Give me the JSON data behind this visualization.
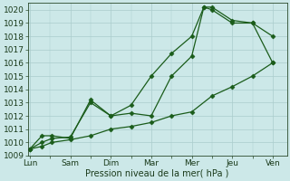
{
  "xlabel": "Pression niveau de la mer( hPa )",
  "background_color": "#cce8e8",
  "grid_color": "#aacccc",
  "line_color": "#1a5c1a",
  "xlabels": [
    "Lun",
    "Sam",
    "Dim",
    "Mar",
    "Mer",
    "Jeu",
    "Ven"
  ],
  "ylim": [
    1009,
    1020.5
  ],
  "yticks": [
    1009,
    1010,
    1011,
    1012,
    1013,
    1014,
    1015,
    1016,
    1017,
    1018,
    1019,
    1020
  ],
  "line1_x": [
    0.0,
    0.3,
    0.55,
    1.0,
    1.5,
    2.0,
    2.5,
    3.0,
    3.5,
    4.0,
    4.5,
    5.0,
    5.5,
    6.0
  ],
  "line1_y": [
    1009.5,
    1009.7,
    1010.0,
    1010.2,
    1010.5,
    1011.0,
    1011.2,
    1011.5,
    1012.0,
    1012.3,
    1013.5,
    1014.2,
    1015.0,
    1016.0
  ],
  "line2_x": [
    0.0,
    0.3,
    0.55,
    1.0,
    1.5,
    2.0,
    2.5,
    3.0,
    3.5,
    4.0,
    4.3,
    4.5,
    5.0,
    5.5,
    6.0
  ],
  "line2_y": [
    1009.5,
    1010.0,
    1010.3,
    1010.4,
    1013.0,
    1012.0,
    1012.8,
    1015.0,
    1016.7,
    1018.0,
    1020.2,
    1020.2,
    1019.2,
    1019.0,
    1018.0
  ],
  "line3_x": [
    0.0,
    0.3,
    0.55,
    1.0,
    1.5,
    2.0,
    2.5,
    3.0,
    3.5,
    4.0,
    4.3,
    4.5,
    5.0,
    5.5,
    6.0
  ],
  "line3_y": [
    1009.5,
    1010.5,
    1010.5,
    1010.3,
    1013.2,
    1012.0,
    1012.2,
    1012.0,
    1015.0,
    1016.5,
    1020.2,
    1020.0,
    1019.0,
    1019.0,
    1016.0
  ],
  "xlabel_fontsize": 7,
  "tick_fontsize": 6.5
}
